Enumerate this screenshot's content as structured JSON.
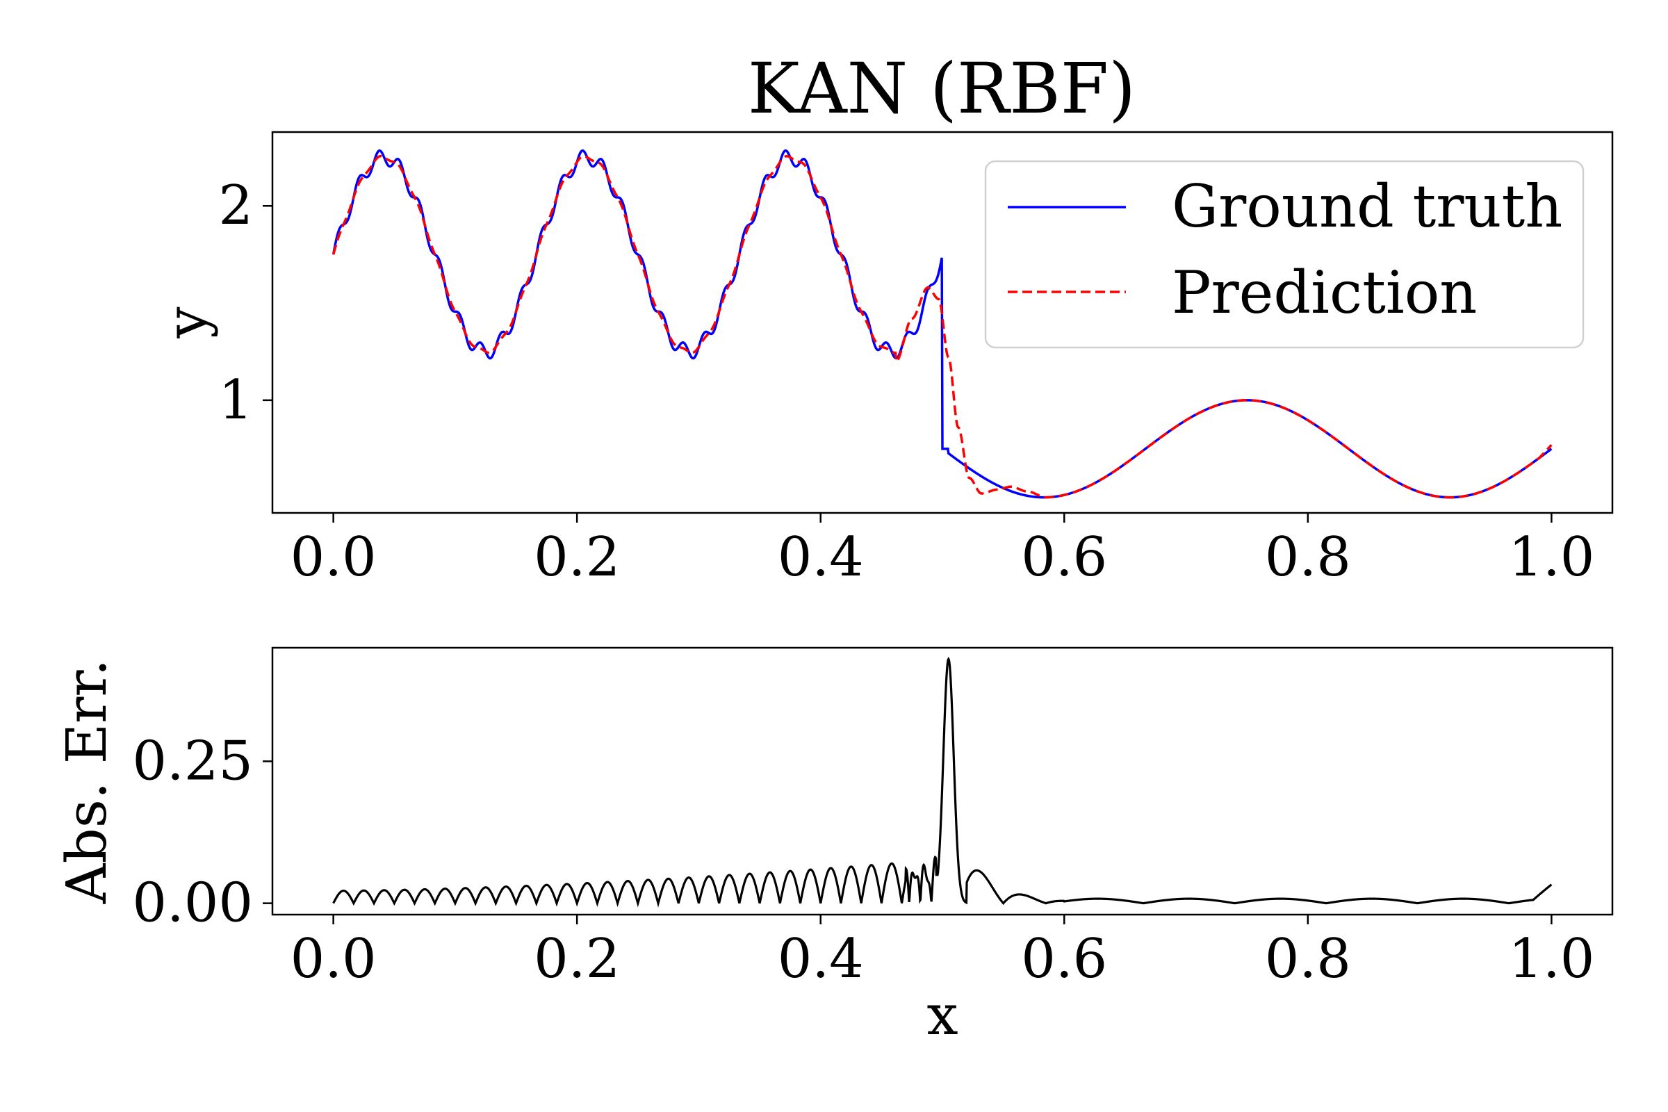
{
  "chart_data": [
    {
      "type": "line",
      "panel": "top",
      "title": "KAN (RBF)",
      "xlabel": "",
      "ylabel": "y",
      "xlim": [
        -0.05,
        1.05
      ],
      "ylim": [
        0.42,
        2.38
      ],
      "xticks": [
        "0.0",
        "0.2",
        "0.4",
        "0.6",
        "0.8",
        "1.0"
      ],
      "yticks": [
        "1",
        "2"
      ],
      "grid": false,
      "legend": {
        "position": "top-right",
        "entries": [
          "Ground truth",
          "Prediction"
        ]
      },
      "series": [
        {
          "name": "Ground truth",
          "color": "#0000ff",
          "style": "solid",
          "function": "x<0.5: 1.75 + 0.5*sin(12*pi*x) + 0.04*sin(120*pi*x); x>=0.5: 0.75 + 0.25*sin(6*pi*x)",
          "x_range": [
            0.0,
            1.0
          ]
        },
        {
          "name": "Prediction",
          "color": "#ff0000",
          "style": "dashed",
          "function": "smooth RBF fit of ground truth (misses fine oscillation, overshoot near x=0.5)",
          "x_range": [
            0.0,
            1.0
          ]
        }
      ]
    },
    {
      "type": "line",
      "panel": "bottom",
      "title": "",
      "xlabel": "x",
      "ylabel": "Abs. Err.",
      "xlim": [
        -0.05,
        1.05
      ],
      "ylim": [
        -0.02,
        0.45
      ],
      "xticks": [
        "0.0",
        "0.2",
        "0.4",
        "0.6",
        "0.8",
        "1.0"
      ],
      "yticks": [
        "0.00",
        "0.25"
      ],
      "grid": false,
      "series": [
        {
          "name": "Absolute error",
          "color": "#000000",
          "style": "solid",
          "peak": {
            "x": 0.505,
            "y": 0.43
          },
          "x_range": [
            0.0,
            1.0
          ]
        }
      ]
    }
  ]
}
